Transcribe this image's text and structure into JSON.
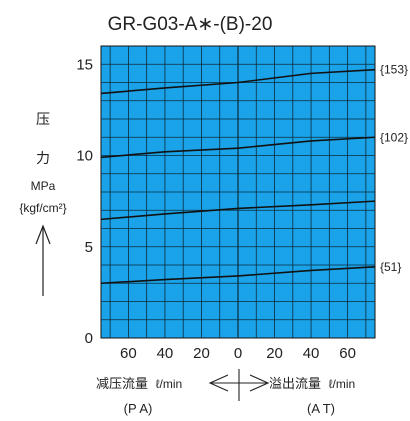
{
  "chart_data": {
    "type": "line",
    "title": "GR-G03-A∗-(B)-20",
    "ylabel_chars": [
      "压",
      "力"
    ],
    "ylabel_unit": "MPa",
    "ylabel_unit_alt": "{kgf/cm²}",
    "x_ticks": [
      "60",
      "40",
      "20",
      "0",
      "20",
      "40",
      "60"
    ],
    "x_tick_values": [
      -60,
      -40,
      -20,
      0,
      20,
      40,
      60
    ],
    "xlim": [
      -75,
      75
    ],
    "y_ticks": [
      "0",
      "5",
      "10",
      "15"
    ],
    "y_tick_values": [
      0,
      5,
      10,
      15
    ],
    "ylim": [
      0,
      16
    ],
    "grid": true,
    "left_flow_label": "减压流量",
    "left_flow_unit": "ℓ/min",
    "left_port": "(P A)",
    "right_flow_label": "溢出流量",
    "right_flow_unit": "ℓ/min",
    "right_port": "(A T)",
    "plot_color": "#1aa3e8",
    "line_color": "#111111",
    "series": [
      {
        "name": "{153}",
        "x": [
          -75,
          -40,
          0,
          40,
          75
        ],
        "y": [
          13.4,
          13.7,
          14.0,
          14.5,
          14.7
        ]
      },
      {
        "name": "{102}",
        "x": [
          -75,
          -40,
          0,
          40,
          75
        ],
        "y": [
          9.9,
          10.2,
          10.4,
          10.8,
          11.0
        ]
      },
      {
        "name": "",
        "x": [
          -75,
          -40,
          0,
          40,
          75
        ],
        "y": [
          6.5,
          6.8,
          7.1,
          7.3,
          7.5
        ]
      },
      {
        "name": "{51}",
        "x": [
          -75,
          -40,
          0,
          40,
          75
        ],
        "y": [
          3.0,
          3.2,
          3.4,
          3.7,
          3.9
        ]
      }
    ]
  }
}
